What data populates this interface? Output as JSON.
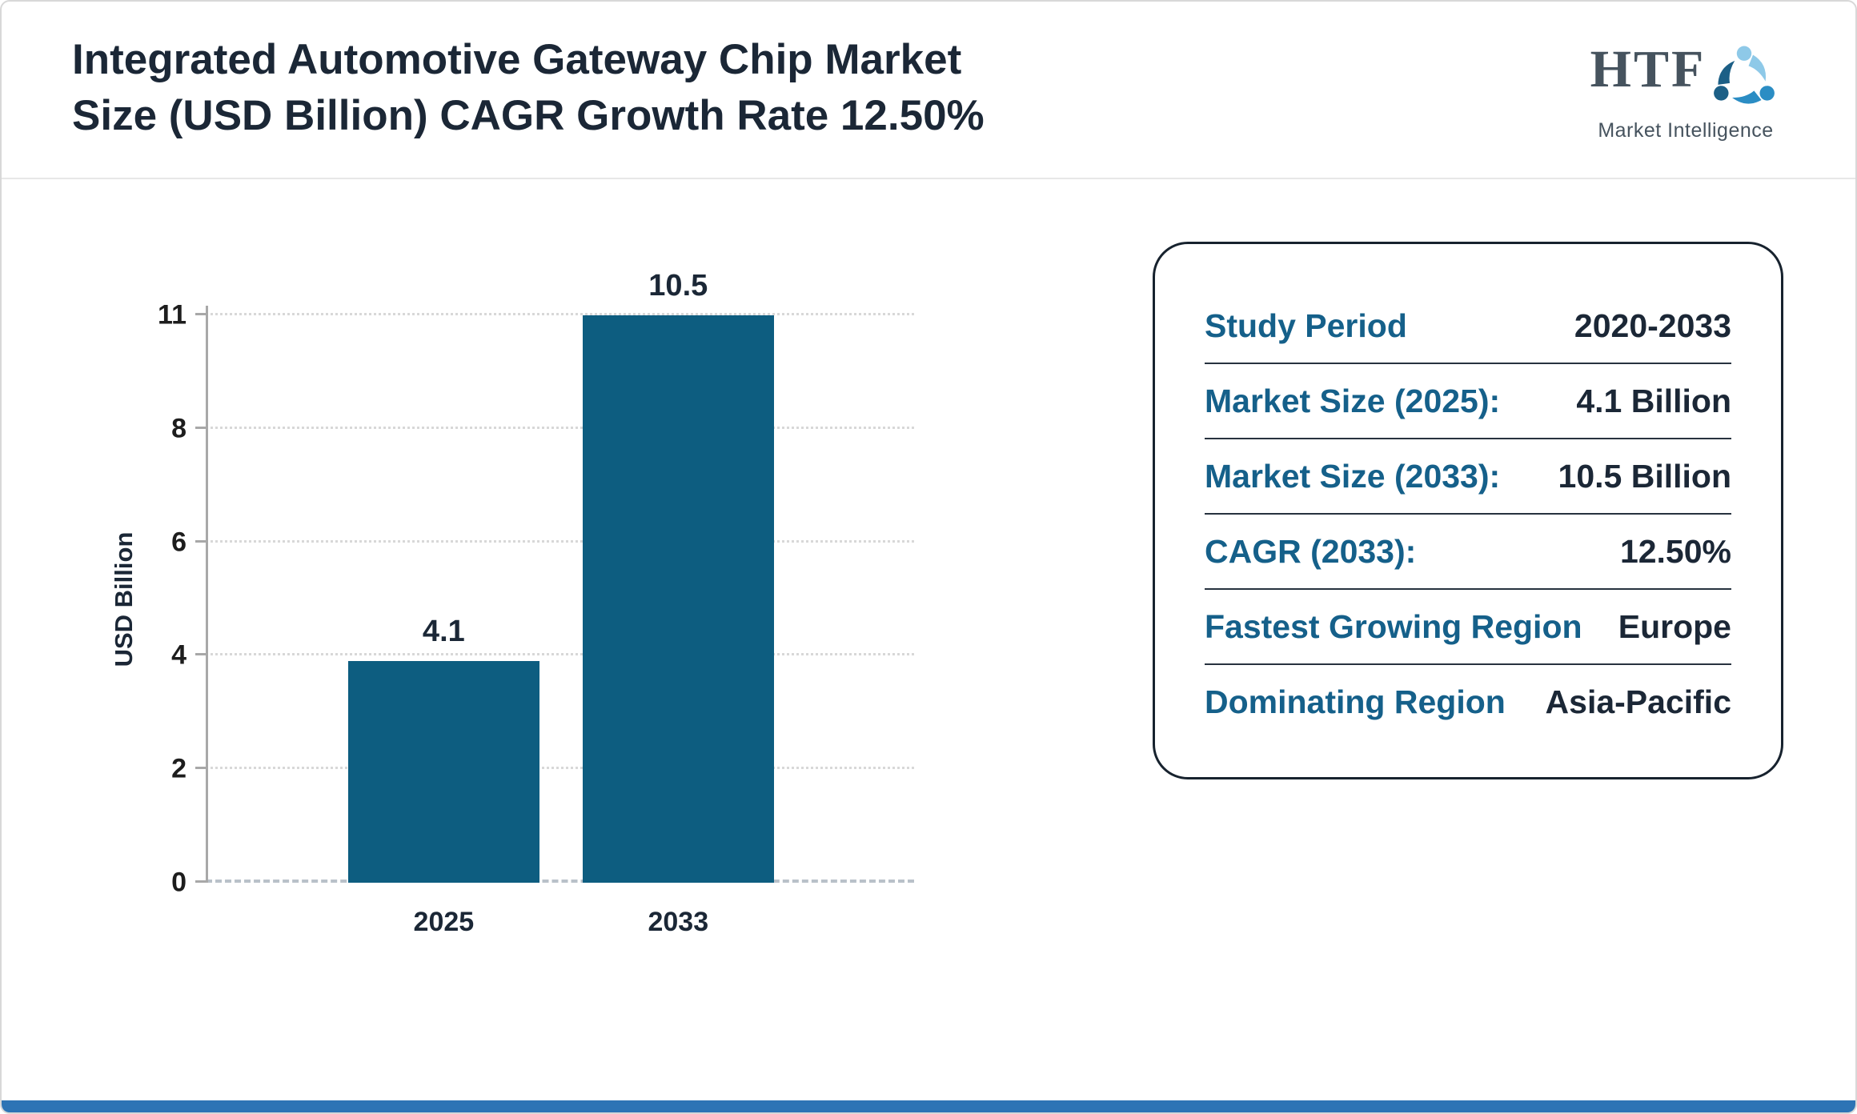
{
  "header": {
    "title_line1": "Integrated Automotive Gateway Chip Market",
    "title_line2": "Size (USD Billion) CAGR Growth Rate 12.50%",
    "logo": {
      "text": "HTF",
      "subtext": "Market Intelligence"
    }
  },
  "chart_data": {
    "type": "bar",
    "title": "Integrated Automotive Gateway Chip Market Size (USD Billion) CAGR Growth Rate 12.50%",
    "categories": [
      "2025",
      "2033"
    ],
    "values": [
      4.1,
      10.5
    ],
    "bar_labels": [
      "4.1",
      "10.5"
    ],
    "xlabel": "",
    "ylabel": "USD Billion",
    "yticks": [
      0,
      2,
      4,
      6,
      8,
      11
    ],
    "ylim": [
      0,
      11
    ],
    "grid": "dotted-horizontal",
    "legend": "none",
    "bar_color": "#0d5d80"
  },
  "summary_card": {
    "rows": [
      {
        "label": "Study Period",
        "value": "2020-2033"
      },
      {
        "label": "Market Size (2025):",
        "value": "4.1 Billion"
      },
      {
        "label": "Market Size (2033):",
        "value": "10.5 Billion"
      },
      {
        "label": "CAGR (2033):",
        "value": "12.50%"
      },
      {
        "label": "Fastest Growing Region",
        "value": "Europe"
      },
      {
        "label": "Dominating Region",
        "value": "Asia-Pacific"
      }
    ]
  },
  "colors": {
    "bar": "#0d5d80",
    "card_label": "#15608a",
    "text_dark": "#1b2736",
    "footer_bar": "#2d74b5",
    "logo_blue_light": "#8ec9e8",
    "logo_blue_mid": "#2b8dc4",
    "logo_blue_dark": "#1c5f86"
  }
}
